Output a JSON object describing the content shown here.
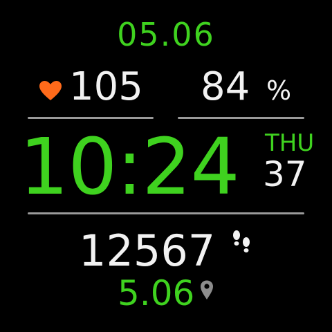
{
  "watchface": {
    "date": "05.06",
    "heart_rate": "105",
    "battery": {
      "value": "84",
      "unit": "%"
    },
    "time": "10:24",
    "weekday": "THU",
    "week_number": "37",
    "steps": "12567",
    "distance": "5.06"
  },
  "icons": {
    "heart": "heart-icon",
    "steps": "footsteps-icon",
    "distance": "location-pin-icon"
  },
  "colors": {
    "background": "#000000",
    "accent_green": "#3fd21f",
    "text_white": "#f2f2f2",
    "heart_orange": "#ff6a1a",
    "divider_gray": "#9a9a9a",
    "pin_gray": "#8c8c8c"
  }
}
